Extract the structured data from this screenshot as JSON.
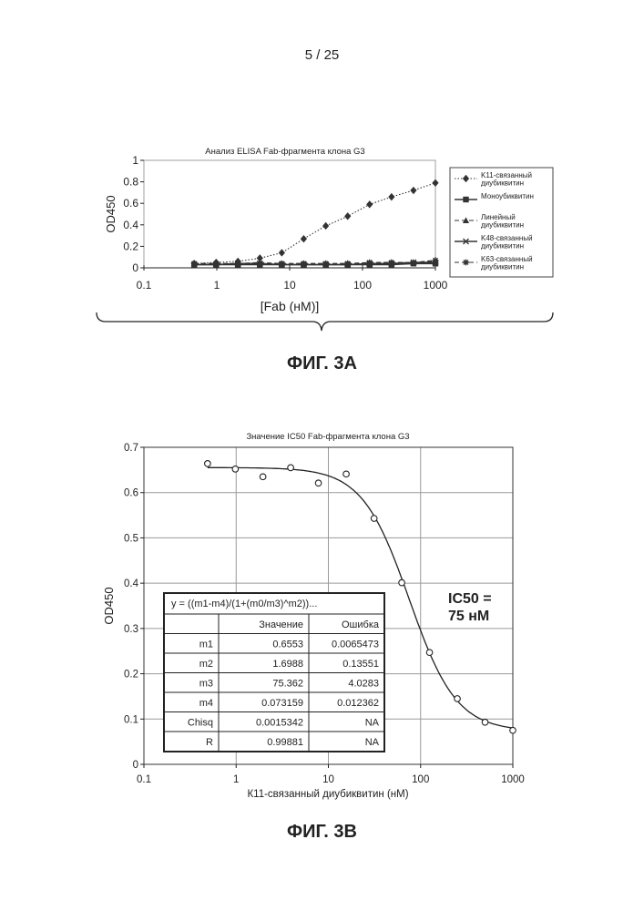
{
  "page": {
    "number": "5 / 25"
  },
  "figures": {
    "fig_3a": {
      "caption": "ФИГ. 3A"
    },
    "fig_3b": {
      "caption": "ФИГ. 3B"
    }
  },
  "chart_data": [
    {
      "id": "fig3a",
      "type": "line",
      "title": "Анализ ELISA Fab-фрагмента клона G3",
      "xlabel": "[Fab (нM)]",
      "ylabel": "OD450",
      "xscale": "log",
      "xlim": [
        0.1,
        1000
      ],
      "ylim": [
        0,
        1
      ],
      "x_ticks": [
        "0.1",
        "1",
        "10",
        "100",
        "1000"
      ],
      "y_ticks": [
        "0",
        "0.2",
        "0.4",
        "0.6",
        "0.8",
        "1"
      ],
      "x": [
        0.49,
        0.98,
        1.95,
        3.9,
        7.8,
        15.6,
        31.3,
        62.5,
        125,
        250,
        500,
        1000
      ],
      "legend_position": "right",
      "series": [
        {
          "name": "K11-связанный диубиквитин",
          "marker": "diamond",
          "line": "dotted",
          "values": [
            0.04,
            0.05,
            0.06,
            0.09,
            0.14,
            0.27,
            0.39,
            0.48,
            0.59,
            0.66,
            0.72,
            0.79
          ]
        },
        {
          "name": "Моноубиквитин",
          "marker": "square",
          "line": "solid",
          "values": [
            0.03,
            0.03,
            0.03,
            0.03,
            0.03,
            0.03,
            0.03,
            0.03,
            0.03,
            0.03,
            0.04,
            0.04
          ]
        },
        {
          "name": "Линейный диубиквитин",
          "marker": "triangle",
          "line": "dashed",
          "values": [
            0.04,
            0.04,
            0.04,
            0.05,
            0.04,
            0.04,
            0.04,
            0.04,
            0.04,
            0.05,
            0.05,
            0.06
          ]
        },
        {
          "name": "K48-связанный диубиквитин",
          "marker": "x",
          "line": "solid",
          "values": [
            0.03,
            0.03,
            0.04,
            0.04,
            0.03,
            0.03,
            0.03,
            0.03,
            0.04,
            0.04,
            0.05,
            0.05
          ]
        },
        {
          "name": "K63-связанный диубиквитин",
          "marker": "asterisk",
          "line": "dashed",
          "values": [
            0.04,
            0.04,
            0.04,
            0.04,
            0.04,
            0.04,
            0.04,
            0.04,
            0.05,
            0.05,
            0.05,
            0.07
          ]
        }
      ]
    },
    {
      "id": "fig3b",
      "type": "scatter",
      "title": "Значение IC50 Fab-фрагмента клона G3",
      "xlabel": "К11-связанный диубиквитин (нМ)",
      "ylabel": "OD450",
      "xscale": "log",
      "xlim": [
        0.1,
        1000
      ],
      "ylim": [
        0,
        0.7
      ],
      "x_ticks": [
        "0.1",
        "1",
        "10",
        "100",
        "1000"
      ],
      "y_ticks": [
        "0",
        "0.1",
        "0.2",
        "0.3",
        "0.4",
        "0.5",
        "0.6",
        "0.7"
      ],
      "grid": true,
      "points": {
        "x": [
          0.49,
          0.98,
          1.95,
          3.9,
          7.8,
          15.6,
          31.3,
          62.5,
          125,
          250,
          500,
          1000
        ],
        "y": [
          0.664,
          0.652,
          0.635,
          0.655,
          0.621,
          0.641,
          0.543,
          0.401,
          0.247,
          0.145,
          0.093,
          0.075
        ]
      },
      "fit": {
        "m1": 0.6553,
        "m2": 1.6988,
        "m3": 75.362,
        "m4": 0.073159
      },
      "annotation": {
        "line1": "IC50 =",
        "line2": "75 нМ"
      },
      "table": {
        "equation": "y = ((m1-m4)/(1+(m0/m3)^m2))...",
        "columns": [
          "",
          "Значение",
          "Ошибка"
        ],
        "rows": [
          {
            "name": "m1",
            "value": "0.6553",
            "error": "0.0065473"
          },
          {
            "name": "m2",
            "value": "1.6988",
            "error": "0.13551"
          },
          {
            "name": "m3",
            "value": "75.362",
            "error": "4.0283"
          },
          {
            "name": "m4",
            "value": "0.073159",
            "error": "0.012362"
          },
          {
            "name": "Chisq",
            "value": "0.0015342",
            "error": "NA"
          },
          {
            "name": "R",
            "value": "0.99881",
            "error": "NA"
          }
        ]
      }
    }
  ]
}
